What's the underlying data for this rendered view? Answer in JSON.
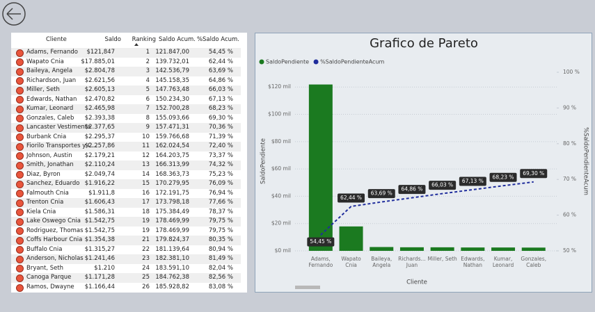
{
  "table": {
    "columns": [
      "Cliente",
      "Saldo",
      "Ranking",
      "Saldo Acum.",
      "%Saldo Acum."
    ],
    "rows": [
      [
        "Adams, Fernando",
        "$121,847",
        "1",
        "121.847,00",
        "54,45 %"
      ],
      [
        "Wapato Cnia",
        "$17.885,01",
        "2",
        "139.732,01",
        "62,44 %"
      ],
      [
        "Baileya, Angela",
        "$2.804,78",
        "3",
        "142.536,79",
        "63,69 %"
      ],
      [
        "Richardson, Juan",
        "$2.621,56",
        "4",
        "145.158,35",
        "64,86 %"
      ],
      [
        "Miller, Seth",
        "$2.605,13",
        "5",
        "147.763,48",
        "66,03 %"
      ],
      [
        "Edwards, Nathan",
        "$2.470,82",
        "6",
        "150.234,30",
        "67,13 %"
      ],
      [
        "Kumar, Leonard",
        "$2.465,98",
        "7",
        "152.700,28",
        "68,23 %"
      ],
      [
        "Gonzales, Caleb",
        "$2.393,38",
        "8",
        "155.093,66",
        "69,30 %"
      ],
      [
        "Lancaster Vestimenta",
        "$2.377,65",
        "9",
        "157.471,31",
        "70,36 %"
      ],
      [
        "Burbank Cnia",
        "$2.295,37",
        "10",
        "159.766,68",
        "71,39 %"
      ],
      [
        "Fiorilo Transportes y C...",
        "$2.257,86",
        "11",
        "162.024,54",
        "72,40 %"
      ],
      [
        "Johnson, Austin",
        "$2.179,21",
        "12",
        "164.203,75",
        "73,37 %"
      ],
      [
        "Smith, Jonathan",
        "$2.110,24",
        "13",
        "166.313,99",
        "74,32 %"
      ],
      [
        "Diaz, Byron",
        "$2.049,74",
        "14",
        "168.363,73",
        "75,23 %"
      ],
      [
        "Sanchez, Eduardo",
        "$1.916,22",
        "15",
        "170.279,95",
        "76,09 %"
      ],
      [
        "Falmouth Cnia",
        "$1.911,8",
        "16",
        "172.191,75",
        "76,94 %"
      ],
      [
        "Trenton Cnia",
        "$1.606,43",
        "17",
        "173.798,18",
        "77,66 %"
      ],
      [
        "Kiela Cnia",
        "$1.586,31",
        "18",
        "175.384,49",
        "78,37 %"
      ],
      [
        "Lake Oswego Cnia",
        "$1.542,75",
        "19",
        "178.469,99",
        "79,75 %"
      ],
      [
        "Rodriguez, Thomas",
        "$1.542,75",
        "19",
        "178.469,99",
        "79,75 %"
      ],
      [
        "Coffs Harbour Cnia",
        "$1.354,38",
        "21",
        "179.824,37",
        "80,35 %"
      ],
      [
        "Buffalo Cnia",
        "$1.315,27",
        "22",
        "181.139,64",
        "80,94 %"
      ],
      [
        "Anderson, Nicholas",
        "$1.241,46",
        "23",
        "182.381,10",
        "81,49 %"
      ],
      [
        "Bryant, Seth",
        "$1.210",
        "24",
        "183.591,10",
        "82,04 %"
      ],
      [
        "Canoga Parque",
        "$1.171,28",
        "25",
        "184.762,38",
        "82,56 %"
      ],
      [
        "Ramos, Dwayne",
        "$1.166,44",
        "26",
        "185.928,82",
        "83,08 %"
      ]
    ]
  },
  "chart_data": {
    "type": "combo",
    "title": "Grafico de Pareto",
    "categories": [
      "Adams, Fernando",
      "Wapato Cnia",
      "Baileya, Angela",
      "Richards... Juan",
      "Miller, Seth",
      "Edwards, Nathan",
      "Kumar, Leonard",
      "Gonzales, Caleb"
    ],
    "series": [
      {
        "name": "SaldoPendiente",
        "type": "bar",
        "color": "#1b7a20",
        "values": [
          121847,
          17885.01,
          2804.78,
          2621.56,
          2605.13,
          2470.82,
          2465.98,
          2393.38
        ]
      },
      {
        "name": "%SaldoPendienteAcum",
        "type": "line",
        "axis": "y2",
        "color": "#1f2d9c",
        "values": [
          54.45,
          62.44,
          63.69,
          64.86,
          66.03,
          67.13,
          68.23,
          69.3
        ],
        "value_labels": [
          "54,45 %",
          "62,44 %",
          "63,69 %",
          "64,86 %",
          "66,03 %",
          "67,13 %",
          "68,23 %",
          "69,30 %"
        ]
      }
    ],
    "x_label": "Cliente",
    "y_label": "SaldoPendiente",
    "y2_label": "%SaldoPendienteAcum",
    "ylim": [
      0,
      130800
    ],
    "yticks": [
      {
        "value": 0,
        "label": "$0 mil"
      },
      {
        "value": 20000,
        "label": "$20 mil"
      },
      {
        "value": 40000,
        "label": "$40 mil"
      },
      {
        "value": 60000,
        "label": "$60 mil"
      },
      {
        "value": 80000,
        "label": "$80 mil"
      },
      {
        "value": 100000,
        "label": "$100 mil"
      },
      {
        "value": 120000,
        "label": "$120 mil"
      }
    ],
    "y2lim": [
      50,
      100
    ],
    "y2ticks": [
      {
        "value": 50,
        "label": "50 %"
      },
      {
        "value": 60,
        "label": "60 %"
      },
      {
        "value": 70,
        "label": "70 %"
      },
      {
        "value": 80,
        "label": "80 %"
      },
      {
        "value": 90,
        "label": "90 %"
      },
      {
        "value": 100,
        "label": "100 %"
      }
    ],
    "grid": true,
    "legend": "top-left"
  }
}
